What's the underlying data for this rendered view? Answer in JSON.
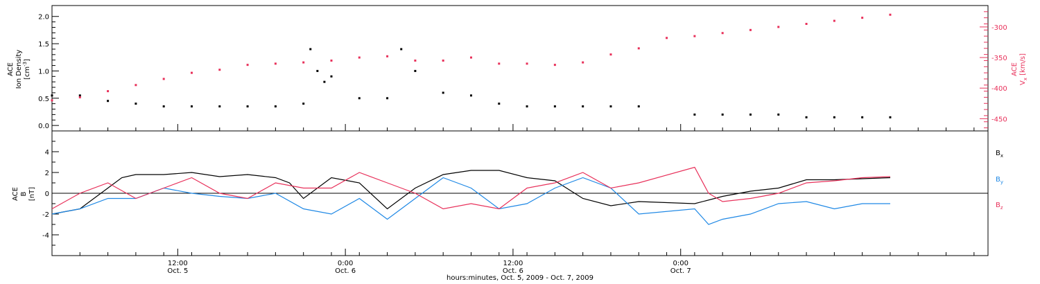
{
  "colors": {
    "ink": "#000000",
    "pink": "#e8305a",
    "blue": "#1e88e5"
  },
  "chart_data": [
    {
      "type": "scatter",
      "panel": "top",
      "left_axis_label": {
        "line1": "ACE",
        "line2": "Ion Density",
        "unit_base": "[cm",
        "unit_sup": "-3",
        "unit_end": "]"
      },
      "right_axis_label": {
        "top": "ACE",
        "main": "V",
        "sub": "x",
        "unit": " [km/s]"
      },
      "xlim_hours": [
        0,
        67
      ],
      "ylim_left": [
        -0.1,
        2.2
      ],
      "ylim_right": [
        -470,
        -265
      ],
      "left_ticks": [
        "0.0",
        "0.5",
        "1.0",
        "1.5",
        "2.0"
      ],
      "right_ticks": [
        "-300",
        "-350",
        "-400",
        "-450"
      ],
      "series": [
        {
          "name": "Ion Density",
          "color": "black",
          "axis": "left",
          "x": [
            0,
            2,
            4,
            6,
            8,
            10,
            12,
            14,
            16,
            18,
            18.5,
            19,
            19.5,
            20,
            22,
            24,
            25,
            26,
            28,
            30,
            32,
            34,
            36,
            38,
            40,
            42,
            46,
            48,
            50,
            52,
            54,
            56,
            58,
            60
          ],
          "y": [
            0.55,
            0.55,
            0.45,
            0.4,
            0.35,
            0.35,
            0.35,
            0.35,
            0.35,
            0.4,
            1.4,
            1.0,
            0.8,
            0.9,
            0.5,
            0.5,
            1.4,
            1.0,
            0.6,
            0.55,
            0.4,
            0.35,
            0.35,
            0.35,
            0.35,
            0.35,
            0.2,
            0.2,
            0.2,
            0.2,
            0.15,
            0.15,
            0.15,
            0.15
          ]
        },
        {
          "name": "Vx",
          "color": "pink",
          "axis": "right",
          "x": [
            0,
            2,
            4,
            6,
            8,
            10,
            12,
            14,
            16,
            18,
            20,
            22,
            24,
            26,
            28,
            30,
            32,
            34,
            36,
            38,
            40,
            42,
            44,
            46,
            48,
            50,
            52,
            54,
            56,
            58,
            60
          ],
          "y": [
            -420,
            -415,
            -405,
            -395,
            -385,
            -375,
            -370,
            -362,
            -360,
            -358,
            -355,
            -350,
            -348,
            -355,
            -355,
            -350,
            -360,
            -360,
            -362,
            -358,
            -345,
            -335,
            -318,
            -315,
            -310,
            -305,
            -300,
            -295,
            -290,
            -285,
            -280
          ]
        }
      ]
    },
    {
      "type": "line",
      "panel": "bottom",
      "left_axis_label": {
        "line1": "ACE",
        "line2": "B",
        "unit": "[nT]"
      },
      "xlim_hours": [
        0,
        67
      ],
      "ylim": [
        -6,
        6
      ],
      "y_ticks": [
        "4",
        "2",
        "0",
        "-2",
        "-4"
      ],
      "legend": [
        {
          "label": "B",
          "sub": "x",
          "color": "black"
        },
        {
          "label": "B",
          "sub": "y",
          "color": "blue"
        },
        {
          "label": "B",
          "sub": "z",
          "color": "pink"
        }
      ],
      "series": [
        {
          "name": "Bx",
          "color": "black",
          "x": [
            0,
            2,
            4,
            5,
            6,
            8,
            10,
            12,
            14,
            16,
            17,
            18,
            20,
            22,
            24,
            26,
            28,
            30,
            32,
            34,
            36,
            38,
            40,
            42,
            46,
            48,
            50,
            52,
            54,
            56,
            58,
            60
          ],
          "y": [
            -2,
            -1.5,
            0.5,
            1.5,
            1.8,
            1.8,
            2.0,
            1.6,
            1.8,
            1.5,
            1.0,
            -0.5,
            1.5,
            1.0,
            -1.5,
            0.5,
            1.8,
            2.2,
            2.2,
            1.5,
            1.2,
            -0.5,
            -1.2,
            -0.8,
            -1.0,
            -0.3,
            0.2,
            0.5,
            1.3,
            1.3,
            1.4,
            1.5
          ]
        },
        {
          "name": "By",
          "color": "blue",
          "x": [
            0,
            2,
            4,
            6,
            8,
            10,
            12,
            14,
            16,
            18,
            20,
            22,
            24,
            26,
            28,
            30,
            32,
            34,
            36,
            38,
            40,
            42,
            46,
            47,
            48,
            50,
            52,
            54,
            56,
            58,
            60
          ],
          "y": [
            -2,
            -1.5,
            -0.5,
            -0.5,
            0.5,
            0.0,
            -0.3,
            -0.5,
            0.0,
            -1.5,
            -2.0,
            -0.5,
            -2.5,
            -0.5,
            1.5,
            0.5,
            -1.5,
            -1.0,
            0.5,
            1.5,
            0.5,
            -2.0,
            -1.5,
            -3.0,
            -2.5,
            -2.0,
            -1.0,
            -0.8,
            -1.5,
            -1.0,
            -1.0
          ]
        },
        {
          "name": "Bz",
          "color": "pink",
          "x": [
            0,
            2,
            4,
            6,
            8,
            10,
            12,
            14,
            16,
            18,
            20,
            22,
            24,
            26,
            28,
            30,
            32,
            34,
            36,
            38,
            40,
            42,
            46,
            47,
            48,
            50,
            52,
            54,
            56,
            58,
            60
          ],
          "y": [
            -1.5,
            0,
            1.0,
            -0.5,
            0.5,
            1.5,
            0.0,
            -0.5,
            1.0,
            0.5,
            0.5,
            2.0,
            1.0,
            0.0,
            -1.5,
            -1.0,
            -1.5,
            0.5,
            1.0,
            2.0,
            0.5,
            1.0,
            2.5,
            0.0,
            -0.8,
            -0.5,
            0.0,
            1.0,
            1.2,
            1.5,
            1.6
          ]
        }
      ]
    }
  ],
  "x_axis": {
    "xlabel": "hours:minutes, Oct.  5, 2009 - Oct.  7, 2009",
    "ticks": [
      {
        "hour": 9,
        "time": "12:00",
        "date": "Oct. 5"
      },
      {
        "hour": 21,
        "time": "0:00",
        "date": "Oct. 6"
      },
      {
        "hour": 33,
        "time": "12:00",
        "date": "Oct. 6"
      },
      {
        "hour": 45,
        "time": "0:00",
        "date": "Oct. 7"
      }
    ]
  }
}
